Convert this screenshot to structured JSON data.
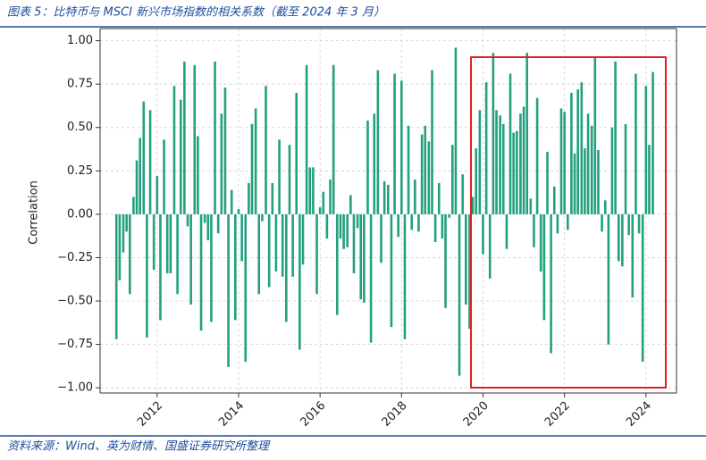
{
  "chart_data": {
    "type": "bar",
    "title": "图表 5：比特币与 MSCI 新兴市场指数的相关系数（截至 2024 年 3 月）",
    "source": "资料来源：Wind、英为财情、国盛证券研究所整理",
    "y_label": "Correlation",
    "color": "#23a07e",
    "grid": true,
    "xlim": [
      2010.6,
      2024.75
    ],
    "xticks": [
      2012,
      2014,
      2016,
      2018,
      2020,
      2022,
      2024
    ],
    "ylim": [
      -1.03,
      1.07
    ],
    "yticks": [
      {
        "value": 1,
        "label": "1.00"
      },
      {
        "value": 0.75,
        "label": "0.75"
      },
      {
        "value": 0.5,
        "label": "0.50"
      },
      {
        "value": 0.25,
        "label": "0.25"
      },
      {
        "value": 0,
        "label": "0.00"
      },
      {
        "value": -0.25,
        "label": "−0.25"
      },
      {
        "value": -0.5,
        "label": "−0.50"
      },
      {
        "value": -0.75,
        "label": "−0.75"
      },
      {
        "value": -1,
        "label": "−1.00"
      }
    ],
    "x": [
      2011.0,
      2011.08,
      2011.17,
      2011.25,
      2011.33,
      2011.42,
      2011.5,
      2011.58,
      2011.67,
      2011.75,
      2011.83,
      2011.92,
      2012.0,
      2012.08,
      2012.17,
      2012.25,
      2012.33,
      2012.42,
      2012.5,
      2012.58,
      2012.67,
      2012.75,
      2012.83,
      2012.92,
      2013.0,
      2013.08,
      2013.17,
      2013.25,
      2013.33,
      2013.42,
      2013.5,
      2013.58,
      2013.67,
      2013.75,
      2013.83,
      2013.92,
      2014.0,
      2014.08,
      2014.17,
      2014.25,
      2014.33,
      2014.42,
      2014.5,
      2014.58,
      2014.67,
      2014.75,
      2014.83,
      2014.92,
      2015.0,
      2015.08,
      2015.17,
      2015.25,
      2015.33,
      2015.42,
      2015.5,
      2015.58,
      2015.67,
      2015.75,
      2015.83,
      2015.92,
      2016.0,
      2016.08,
      2016.17,
      2016.25,
      2016.33,
      2016.42,
      2016.5,
      2016.58,
      2016.67,
      2016.75,
      2016.83,
      2016.92,
      2017.0,
      2017.08,
      2017.17,
      2017.25,
      2017.33,
      2017.42,
      2017.5,
      2017.58,
      2017.67,
      2017.75,
      2017.83,
      2017.92,
      2018.0,
      2018.08,
      2018.17,
      2018.25,
      2018.33,
      2018.42,
      2018.5,
      2018.58,
      2018.67,
      2018.75,
      2018.83,
      2018.92,
      2019.0,
      2019.08,
      2019.17,
      2019.25,
      2019.33,
      2019.42,
      2019.5,
      2019.58,
      2019.67,
      2019.75,
      2019.83,
      2019.92,
      2020.0,
      2020.08,
      2020.17,
      2020.25,
      2020.33,
      2020.42,
      2020.5,
      2020.58,
      2020.67,
      2020.75,
      2020.83,
      2020.92,
      2021.0,
      2021.08,
      2021.17,
      2021.25,
      2021.33,
      2021.42,
      2021.5,
      2021.58,
      2021.67,
      2021.75,
      2021.83,
      2021.92,
      2022.0,
      2022.08,
      2022.17,
      2022.25,
      2022.33,
      2022.42,
      2022.5,
      2022.58,
      2022.67,
      2022.75,
      2022.83,
      2022.92,
      2023.0,
      2023.08,
      2023.17,
      2023.25,
      2023.33,
      2023.42,
      2023.5,
      2023.58,
      2023.67,
      2023.75,
      2023.83,
      2023.92,
      2024.0,
      2024.08,
      2024.17
    ],
    "values": [
      -0.72,
      -0.38,
      -0.22,
      -0.1,
      -0.46,
      0.1,
      0.31,
      0.44,
      0.65,
      -0.71,
      0.6,
      -0.32,
      0.22,
      -0.61,
      0.43,
      -0.34,
      -0.34,
      0.74,
      -0.46,
      0.66,
      0.88,
      -0.07,
      -0.52,
      0.86,
      0.45,
      -0.67,
      -0.05,
      -0.15,
      -0.62,
      0.88,
      -0.11,
      0.58,
      0.73,
      -0.88,
      0.14,
      -0.61,
      0.03,
      -0.27,
      -0.85,
      0.18,
      0.52,
      0.61,
      -0.46,
      -0.04,
      0.74,
      -0.42,
      0.18,
      -0.33,
      0.43,
      -0.36,
      -0.62,
      0.4,
      -0.36,
      0.7,
      -0.78,
      -0.29,
      0.86,
      0.27,
      0.27,
      -0.46,
      0.04,
      0.13,
      -0.14,
      0.2,
      0.86,
      -0.58,
      -0.14,
      -0.2,
      -0.19,
      0.11,
      -0.34,
      -0.08,
      -0.49,
      -0.51,
      0.54,
      -0.74,
      0.58,
      0.83,
      -0.28,
      0.19,
      0.17,
      -0.65,
      0.81,
      -0.13,
      0.77,
      -0.72,
      0.51,
      -0.09,
      0.2,
      -0.1,
      0.46,
      0.51,
      0.42,
      0.83,
      -0.16,
      0.18,
      -0.14,
      -0.54,
      -0.02,
      0.4,
      0.96,
      -0.93,
      0.23,
      -0.52,
      -0.66,
      0.1,
      0.38,
      0.6,
      -0.23,
      0.76,
      -0.37,
      0.93,
      0.6,
      0.57,
      0.52,
      -0.2,
      0.81,
      0.47,
      0.48,
      0.58,
      0.62,
      0.93,
      0.09,
      -0.19,
      0.67,
      -0.33,
      -0.61,
      0.36,
      -0.8,
      0.16,
      -0.11,
      0.61,
      0.59,
      -0.09,
      0.7,
      0.35,
      0.72,
      0.76,
      0.38,
      0.58,
      0.51,
      0.9,
      0.37,
      -0.1,
      0.08,
      -0.75,
      0.5,
      0.88,
      -0.27,
      -0.3,
      0.52,
      -0.12,
      -0.48,
      0.81,
      -0.11,
      -0.85,
      0.74,
      0.4,
      0.82
    ]
  }
}
